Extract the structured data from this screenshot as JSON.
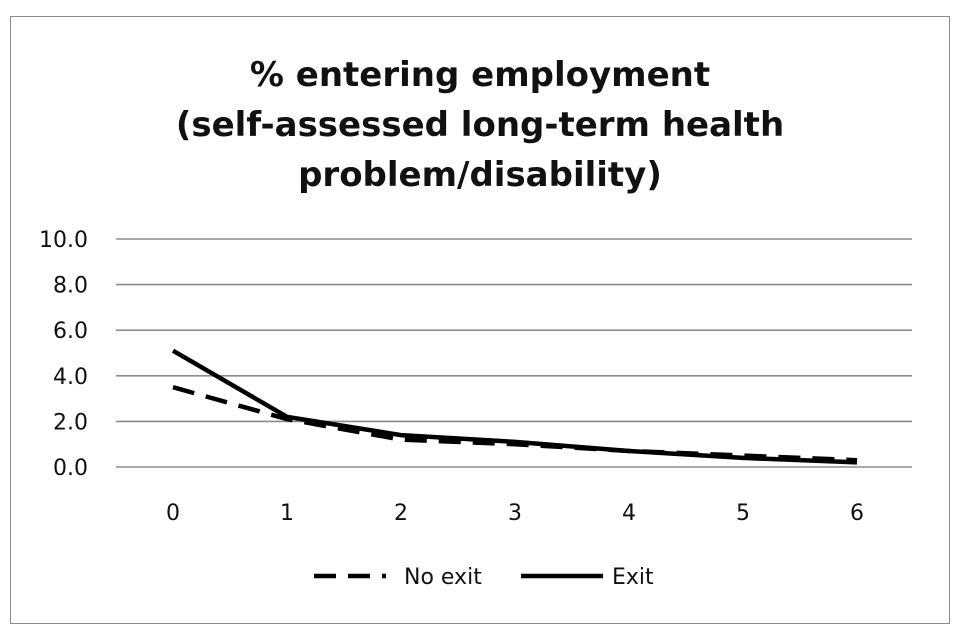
{
  "chart_data": {
    "type": "line",
    "title_lines": [
      "% entering employment",
      "(self-assessed long-term health",
      "problem/disability)"
    ],
    "x": [
      "0",
      "1",
      "2",
      "3",
      "4",
      "5",
      "6"
    ],
    "y_ticks": [
      "0.0",
      "2.0",
      "4.0",
      "6.0",
      "8.0",
      "10.0"
    ],
    "ylim": [
      0,
      10
    ],
    "grid": true,
    "legend_position": "bottom",
    "series": [
      {
        "name": "No exit",
        "style": "dashed",
        "color": "#000000",
        "values": [
          3.5,
          2.1,
          1.2,
          1.0,
          0.7,
          0.5,
          0.3
        ]
      },
      {
        "name": "Exit",
        "style": "solid",
        "color": "#000000",
        "values": [
          5.1,
          2.2,
          1.4,
          1.1,
          0.7,
          0.4,
          0.2
        ]
      }
    ]
  }
}
